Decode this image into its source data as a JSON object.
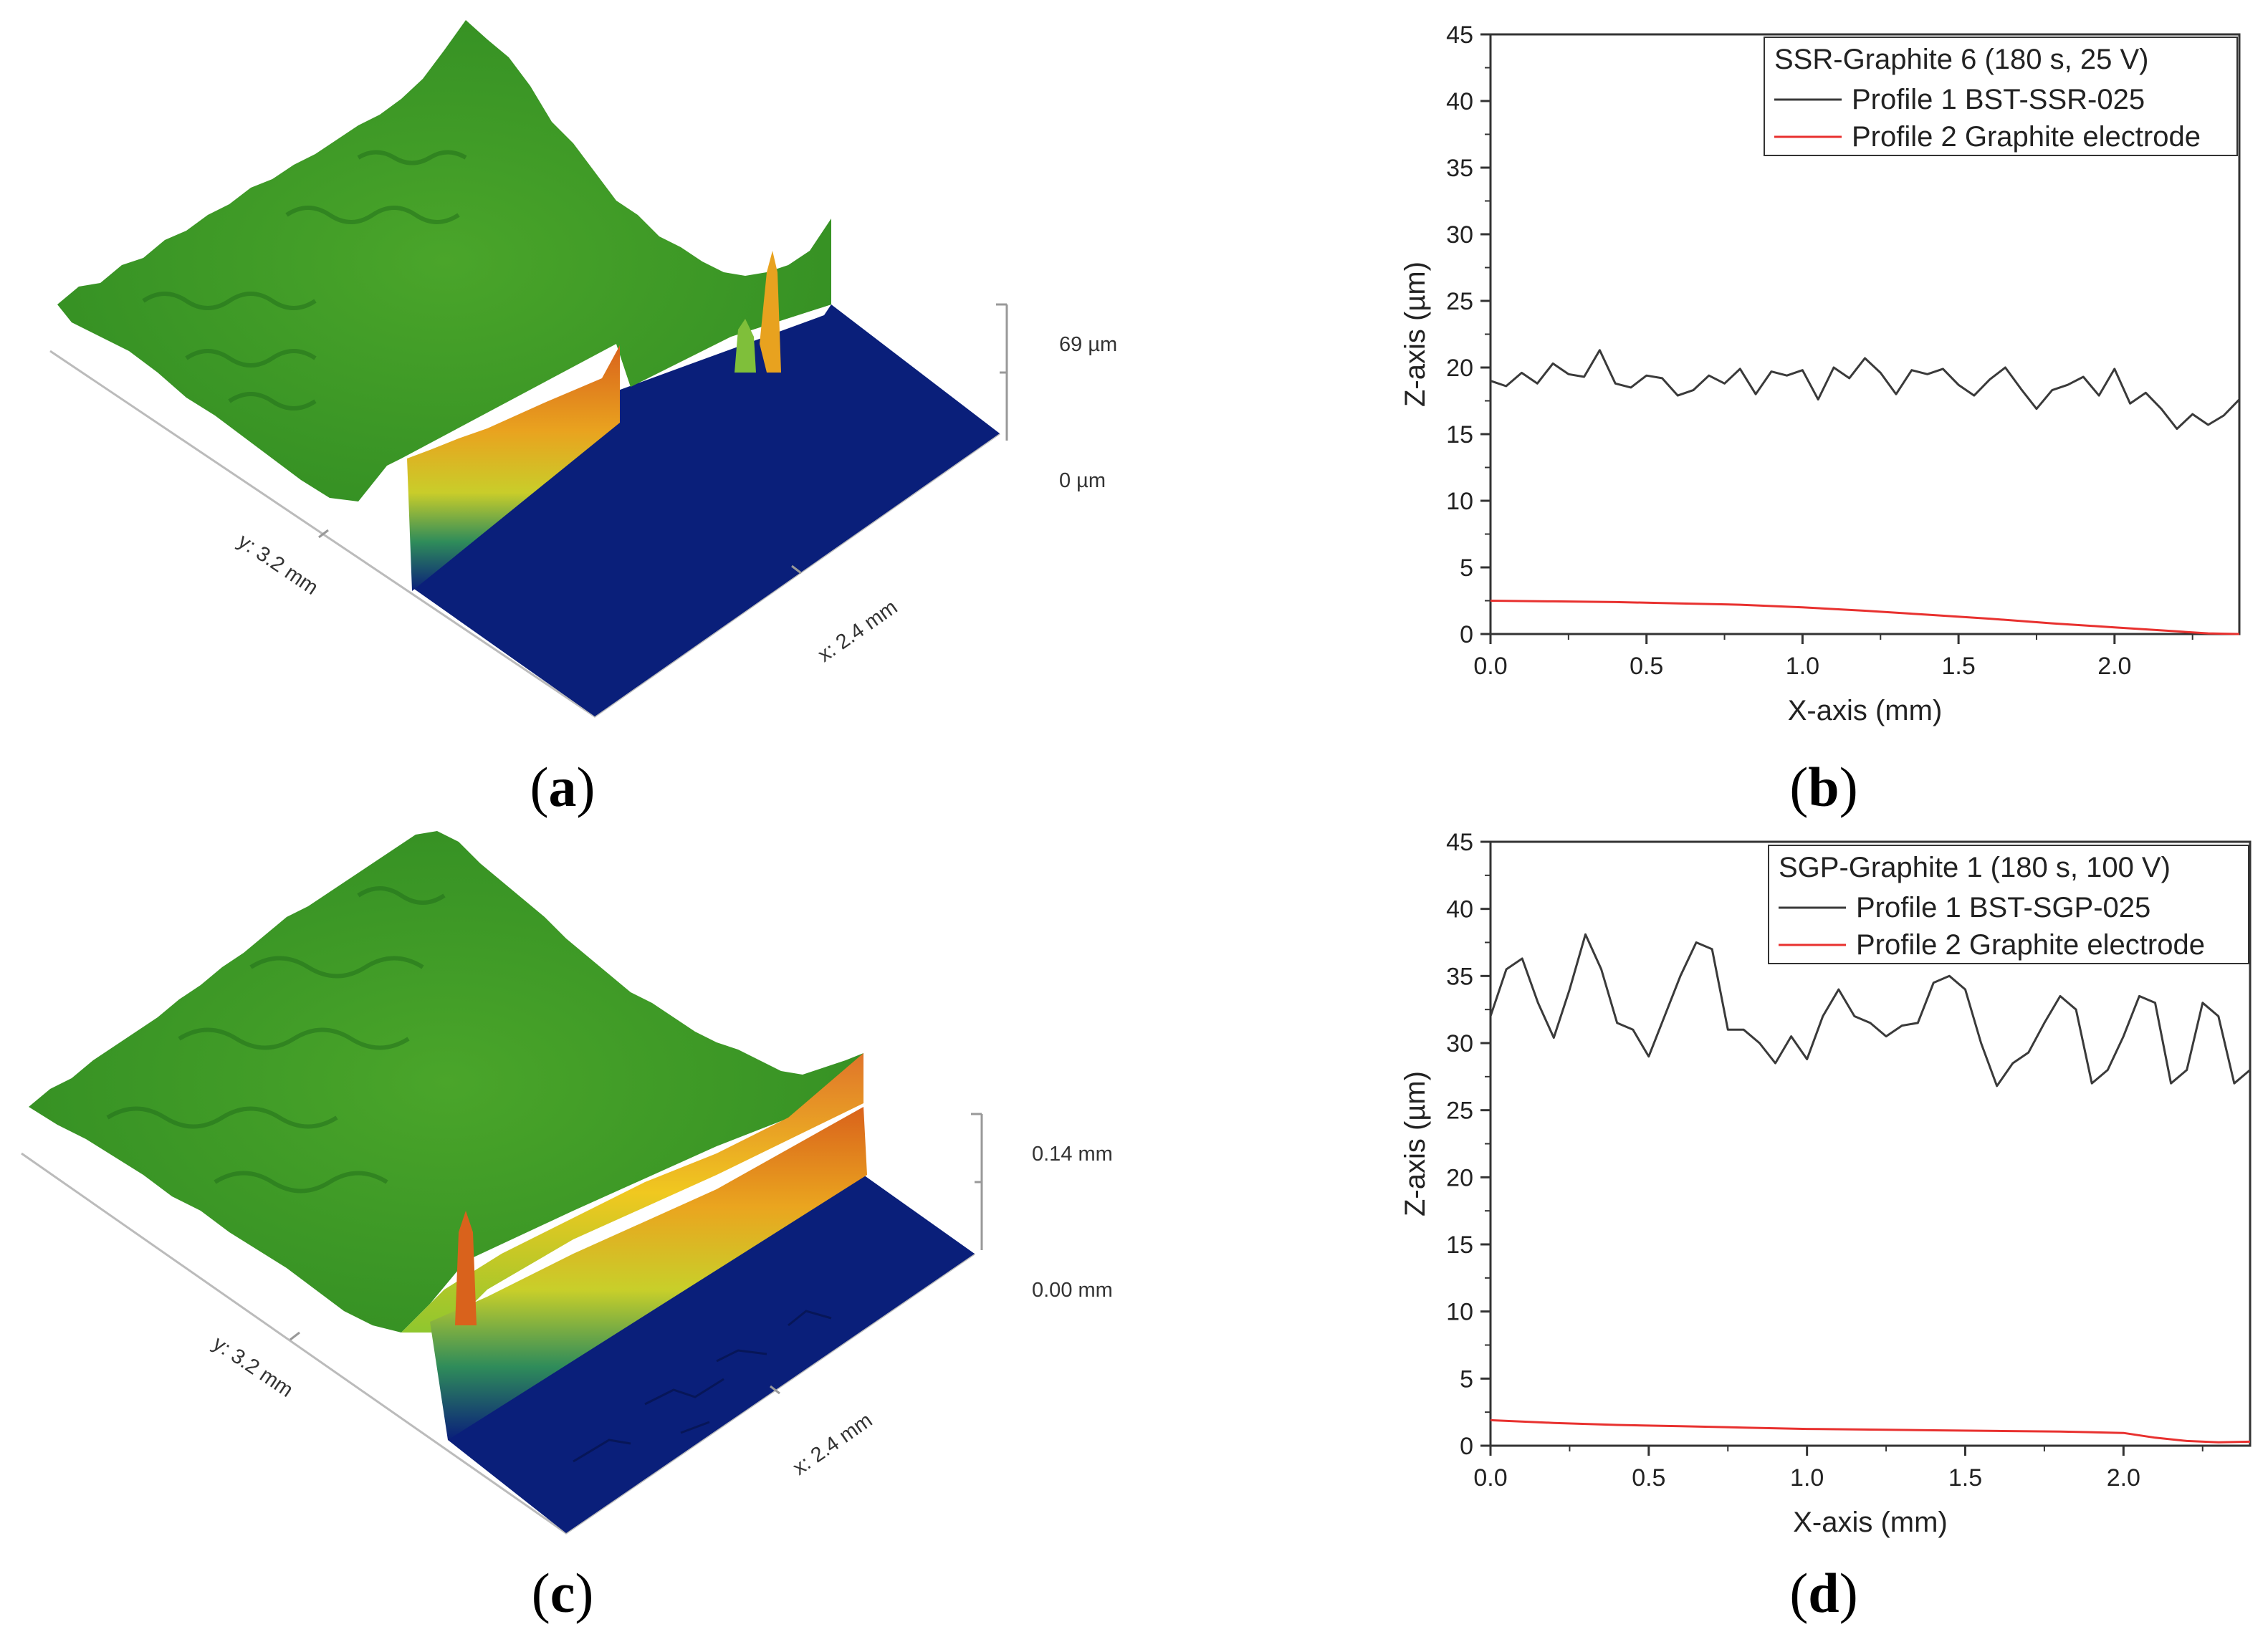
{
  "chart_data": [
    {
      "id": "a",
      "type": "surface3d",
      "panel_label": "a",
      "x_axis_label": "x: 2.4 mm",
      "y_axis_label": "y: 3.2 mm",
      "z_top_label": "69 µm",
      "z_bottom_label": "0 µm",
      "colors": {
        "high": "#d9621c",
        "mid": "#f0d21e",
        "surface": "#3d9a23",
        "low": "#0a1f7a"
      }
    },
    {
      "id": "b",
      "type": "line",
      "panel_label": "b",
      "xlabel": "X-axis (mm)",
      "ylabel": "Z-axis (µm)",
      "xlim": [
        0,
        2.4
      ],
      "ylim": [
        0,
        45
      ],
      "xticks": [
        0.0,
        0.5,
        1.0,
        1.5,
        2.0
      ],
      "xtick_labels": [
        "0.0",
        "0.5",
        "1.0",
        "1.5",
        "2.0"
      ],
      "yticks": [
        0,
        5,
        10,
        15,
        20,
        25,
        30,
        35,
        40,
        45
      ],
      "ytick_labels": [
        "0",
        "5",
        "10",
        "15",
        "20",
        "25",
        "30",
        "35",
        "40",
        "45"
      ],
      "legend_title": "SSR-Graphite 6 (180 s, 25 V)",
      "legend_position": "top-right",
      "series": [
        {
          "name": "Profile 1 BST-SSR-025",
          "color": "#3a3a3a",
          "x": [
            0.0,
            0.05,
            0.1,
            0.15,
            0.2,
            0.25,
            0.3,
            0.35,
            0.4,
            0.45,
            0.5,
            0.55,
            0.6,
            0.65,
            0.7,
            0.75,
            0.8,
            0.85,
            0.9,
            0.95,
            1.0,
            1.05,
            1.1,
            1.15,
            1.2,
            1.25,
            1.3,
            1.35,
            1.4,
            1.45,
            1.5,
            1.55,
            1.6,
            1.65,
            1.7,
            1.75,
            1.8,
            1.85,
            1.9,
            1.95,
            2.0,
            2.05,
            2.1,
            2.15,
            2.2,
            2.25,
            2.3,
            2.35,
            2.4
          ],
          "y": [
            19.0,
            18.6,
            19.6,
            18.8,
            20.3,
            19.5,
            19.3,
            21.3,
            18.8,
            18.5,
            19.4,
            19.2,
            17.9,
            18.3,
            19.4,
            18.8,
            19.9,
            18.0,
            19.7,
            19.4,
            19.8,
            17.6,
            20.0,
            19.2,
            20.7,
            19.6,
            18.0,
            19.8,
            19.5,
            19.9,
            18.7,
            17.9,
            19.1,
            20.0,
            18.4,
            16.9,
            18.3,
            18.7,
            19.3,
            17.9,
            19.9,
            17.3,
            18.1,
            16.9,
            15.4,
            16.5,
            15.7,
            16.4,
            17.6
          ]
        },
        {
          "name": "Profile 2 Graphite electrode",
          "color": "#e8312f",
          "x": [
            0.0,
            0.2,
            0.4,
            0.6,
            0.8,
            1.0,
            1.2,
            1.4,
            1.6,
            1.8,
            2.0,
            2.2,
            2.3,
            2.4
          ],
          "y": [
            2.5,
            2.45,
            2.4,
            2.3,
            2.2,
            2.0,
            1.75,
            1.45,
            1.15,
            0.8,
            0.5,
            0.2,
            0.05,
            0.0
          ]
        }
      ]
    },
    {
      "id": "c",
      "type": "surface3d",
      "panel_label": "c",
      "x_axis_label": "x: 2.4 mm",
      "y_axis_label": "y: 3.2 mm",
      "z_top_label": "0.14 mm",
      "z_bottom_label": "0.00 mm",
      "colors": {
        "high": "#d9621c",
        "mid": "#f0d21e",
        "surface": "#3d9a23",
        "low": "#0a1f7a"
      }
    },
    {
      "id": "d",
      "type": "line",
      "panel_label": "d",
      "xlabel": "X-axis (mm)",
      "ylabel": "Z-axis (µm)",
      "xlim": [
        0,
        2.4
      ],
      "ylim": [
        0,
        45
      ],
      "xticks": [
        0.0,
        0.5,
        1.0,
        1.5,
        2.0
      ],
      "xtick_labels": [
        "0.0",
        "0.5",
        "1.0",
        "1.5",
        "2.0"
      ],
      "yticks": [
        0,
        5,
        10,
        15,
        20,
        25,
        30,
        35,
        40,
        45
      ],
      "ytick_labels": [
        "0",
        "5",
        "10",
        "15",
        "20",
        "25",
        "30",
        "35",
        "40",
        "45"
      ],
      "legend_title": "SGP-Graphite 1 (180 s, 100 V)",
      "legend_position": "top-right",
      "series": [
        {
          "name": "Profile 1 BST-SGP-025",
          "color": "#3a3a3a",
          "x": [
            0.0,
            0.05,
            0.1,
            0.15,
            0.2,
            0.25,
            0.3,
            0.35,
            0.4,
            0.45,
            0.5,
            0.55,
            0.6,
            0.65,
            0.7,
            0.75,
            0.8,
            0.85,
            0.9,
            0.95,
            1.0,
            1.05,
            1.1,
            1.15,
            1.2,
            1.25,
            1.3,
            1.35,
            1.4,
            1.45,
            1.5,
            1.55,
            1.6,
            1.65,
            1.7,
            1.75,
            1.8,
            1.85,
            1.9,
            1.95,
            2.0,
            2.05,
            2.1,
            2.15,
            2.2,
            2.25,
            2.3,
            2.35,
            2.4
          ],
          "y": [
            32.0,
            35.5,
            36.3,
            33.0,
            30.4,
            34.0,
            38.1,
            35.5,
            31.5,
            31.0,
            29.0,
            32.0,
            35.0,
            37.5,
            37.0,
            31.0,
            31.0,
            30.0,
            28.5,
            30.5,
            28.8,
            32.0,
            34.0,
            32.0,
            31.5,
            30.5,
            31.3,
            31.5,
            34.5,
            35.0,
            34.0,
            30.0,
            26.8,
            28.5,
            29.3,
            31.5,
            33.5,
            32.5,
            27.0,
            28.0,
            30.5,
            33.5,
            33.0,
            27.0,
            28.0,
            33.0,
            32.0,
            27.0,
            28.0
          ]
        },
        {
          "name": "Profile 2 Graphite electrode",
          "color": "#e8312f",
          "x": [
            0.0,
            0.2,
            0.4,
            0.6,
            0.8,
            1.0,
            1.2,
            1.4,
            1.6,
            1.8,
            2.0,
            2.1,
            2.2,
            2.3,
            2.4
          ],
          "y": [
            1.9,
            1.7,
            1.55,
            1.45,
            1.35,
            1.25,
            1.2,
            1.15,
            1.1,
            1.05,
            0.95,
            0.6,
            0.35,
            0.25,
            0.3
          ]
        }
      ]
    }
  ]
}
